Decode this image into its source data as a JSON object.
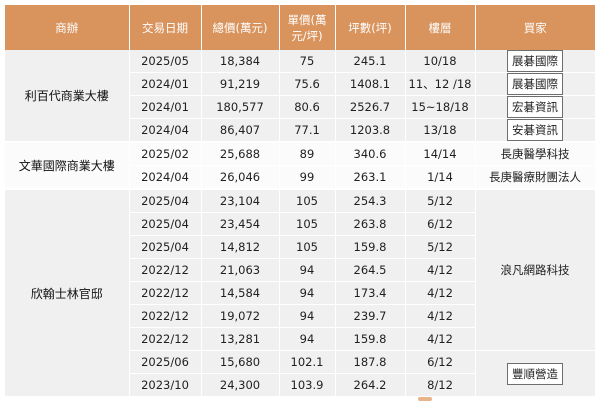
{
  "header": {
    "building": "商辦",
    "date": "交易日期",
    "total": "總價(萬元)",
    "unit_price_line1": "單價(萬",
    "unit_price_line2": "元/坪)",
    "area": "坪數(坪)",
    "floor": "樓層",
    "buyer": "買家"
  },
  "groups": [
    {
      "building": "利百代商業大樓",
      "rows": [
        {
          "date": "2025/05",
          "total": "18,384",
          "unit": "75",
          "area": "245.1",
          "floor": "10/18",
          "buyer": "展碁國際"
        },
        {
          "date": "2024/01",
          "total": "91,219",
          "unit": "75.6",
          "area": "1408.1",
          "floor": "11、12 /18",
          "buyer": "展碁國際"
        },
        {
          "date": "2024/01",
          "total": "180,577",
          "unit": "80.6",
          "area": "2526.7",
          "floor": "15~18/18",
          "buyer": "宏碁資訊"
        },
        {
          "date": "2024/04",
          "total": "86,407",
          "unit": "77.1",
          "area": "1203.8",
          "floor": "13/18",
          "buyer": "安碁資訊"
        }
      ]
    },
    {
      "building": "文華國際商業大樓",
      "rows": [
        {
          "date": "2025/02",
          "total": "25,688",
          "unit": "89",
          "area": "340.6",
          "floor": "14/14",
          "buyer": "長庚醫學科技"
        },
        {
          "date": "2024/04",
          "total": "26,046",
          "unit": "99",
          "area": "263.1",
          "floor": "1/14",
          "buyer": "長庚醫療財團法人"
        }
      ]
    },
    {
      "building": "欣翰士林官邸",
      "buyer_a": "浪凡網路科技",
      "buyer_b": "豐順營造",
      "rows": [
        {
          "date": "2025/04",
          "total": "23,104",
          "unit": "105",
          "area": "254.3",
          "floor": "5/12"
        },
        {
          "date": "2025/04",
          "total": "23,454",
          "unit": "105",
          "area": "263.8",
          "floor": "6/12"
        },
        {
          "date": "2025/04",
          "total": "14,812",
          "unit": "105",
          "area": "159.8",
          "floor": "5/12"
        },
        {
          "date": "2022/12",
          "total": "21,063",
          "unit": "94",
          "area": "264.5",
          "floor": "4/12"
        },
        {
          "date": "2022/12",
          "total": "14,584",
          "unit": "94",
          "area": "173.4",
          "floor": "4/12"
        },
        {
          "date": "2022/12",
          "total": "19,072",
          "unit": "94",
          "area": "239.7",
          "floor": "4/12"
        },
        {
          "date": "2022/12",
          "total": "13,281",
          "unit": "94",
          "area": "159.8",
          "floor": "4/12"
        },
        {
          "date": "2025/06",
          "total": "15,680",
          "unit": "102.1",
          "area": "187.8",
          "floor": "6/12"
        },
        {
          "date": "2023/10",
          "total": "24,300",
          "unit": "103.9",
          "area": "264.2",
          "floor": "8/12"
        }
      ]
    }
  ]
}
